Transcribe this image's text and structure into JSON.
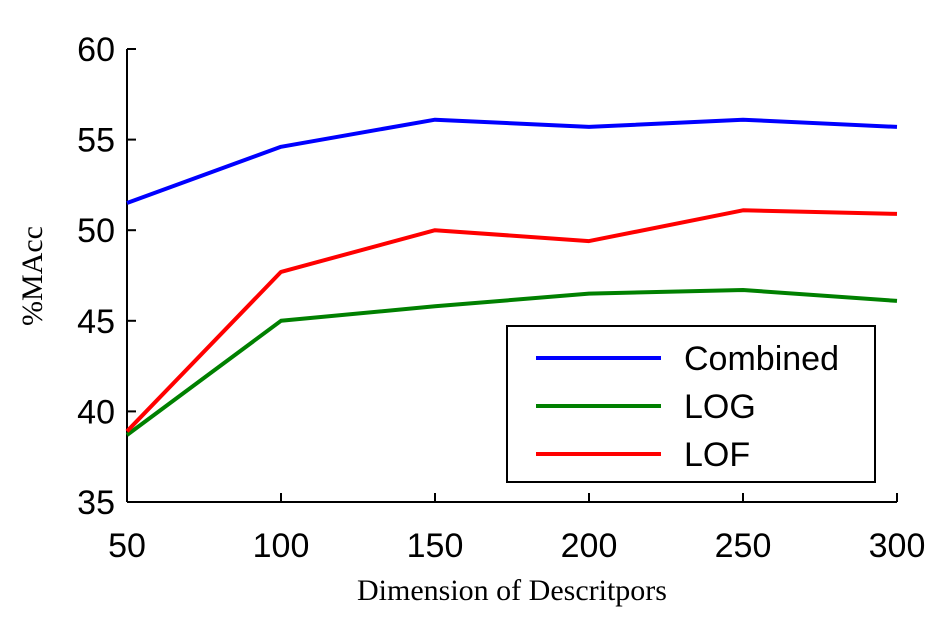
{
  "chart_data": {
    "type": "line",
    "title": "",
    "xlabel": "Dimension of Descritpors",
    "ylabel": "%MAcc",
    "x": [
      50,
      100,
      150,
      200,
      250,
      300
    ],
    "xlim": [
      50,
      300
    ],
    "ylim": [
      35,
      60
    ],
    "xticks": [
      50,
      100,
      150,
      200,
      250,
      300
    ],
    "yticks": [
      35,
      40,
      45,
      50,
      55,
      60
    ],
    "grid": false,
    "legend_position": "bottom-right",
    "series": [
      {
        "name": "Combined",
        "color": "#0000ff",
        "values": [
          51.5,
          54.6,
          56.1,
          55.7,
          56.1,
          55.7
        ]
      },
      {
        "name": "LOG",
        "color": "#008000",
        "values": [
          38.7,
          45.0,
          45.8,
          46.5,
          46.7,
          46.1
        ]
      },
      {
        "name": "LOF",
        "color": "#ff0000",
        "values": [
          38.9,
          47.7,
          50.0,
          49.4,
          51.1,
          50.9
        ]
      }
    ]
  }
}
